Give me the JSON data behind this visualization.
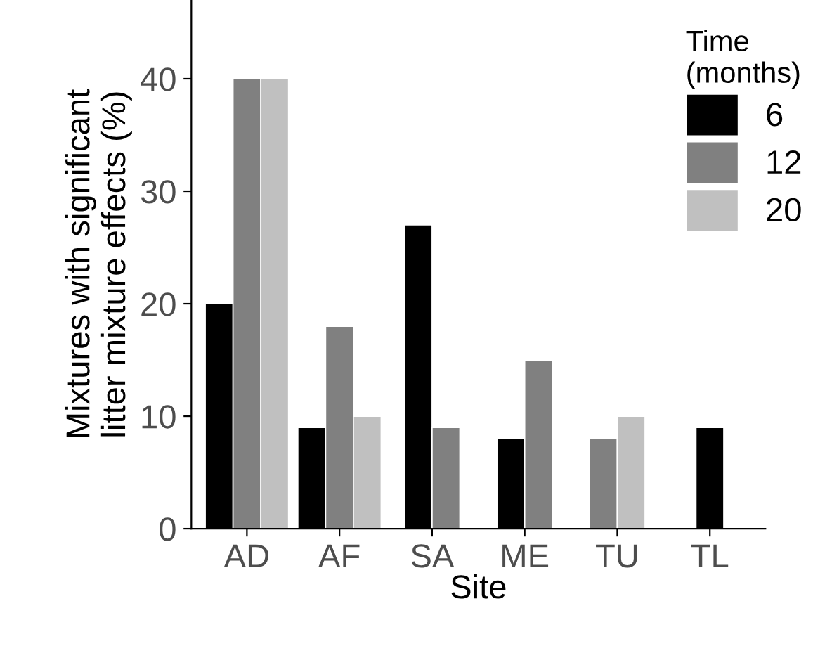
{
  "chart_data": {
    "type": "bar",
    "xlabel": "Site",
    "ylabel": "Mixtures with significant\nlitter mixture effects (%)",
    "legend_title": "Time\n(months)",
    "categories": [
      "AD",
      "AF",
      "SA",
      "ME",
      "TU",
      "TL"
    ],
    "series": [
      {
        "name": "6",
        "color": "#000000",
        "values": [
          20,
          9,
          27,
          8,
          null,
          9
        ]
      },
      {
        "name": "12",
        "color": "#808080",
        "values": [
          40,
          18,
          9,
          15,
          8,
          null
        ]
      },
      {
        "name": "20",
        "color": "#c0c0c0",
        "values": [
          40,
          10,
          null,
          null,
          10,
          null
        ]
      }
    ],
    "ylim": [
      0,
      47
    ],
    "yticks": [
      0,
      10,
      20,
      30,
      40
    ],
    "grid": false,
    "legend": "top right"
  }
}
